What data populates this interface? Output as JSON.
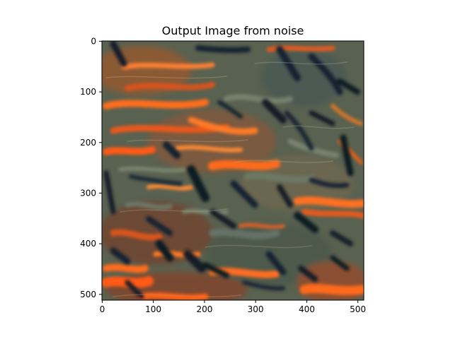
{
  "figure": {
    "title": "Output Image from noise"
  },
  "image": {
    "description_colors": {
      "base": "#5a5f52",
      "orange": "#ff6a1a",
      "dark": "#14202c",
      "gray_green": "#6c7a68",
      "red_orange": "#e0401a"
    }
  },
  "axes": {
    "x_ticks": [
      "0",
      "100",
      "200",
      "300",
      "400",
      "500"
    ],
    "y_ticks": [
      "0",
      "100",
      "200",
      "300",
      "400",
      "500"
    ],
    "x_range": [
      0,
      512
    ],
    "y_range": [
      0,
      512
    ]
  }
}
